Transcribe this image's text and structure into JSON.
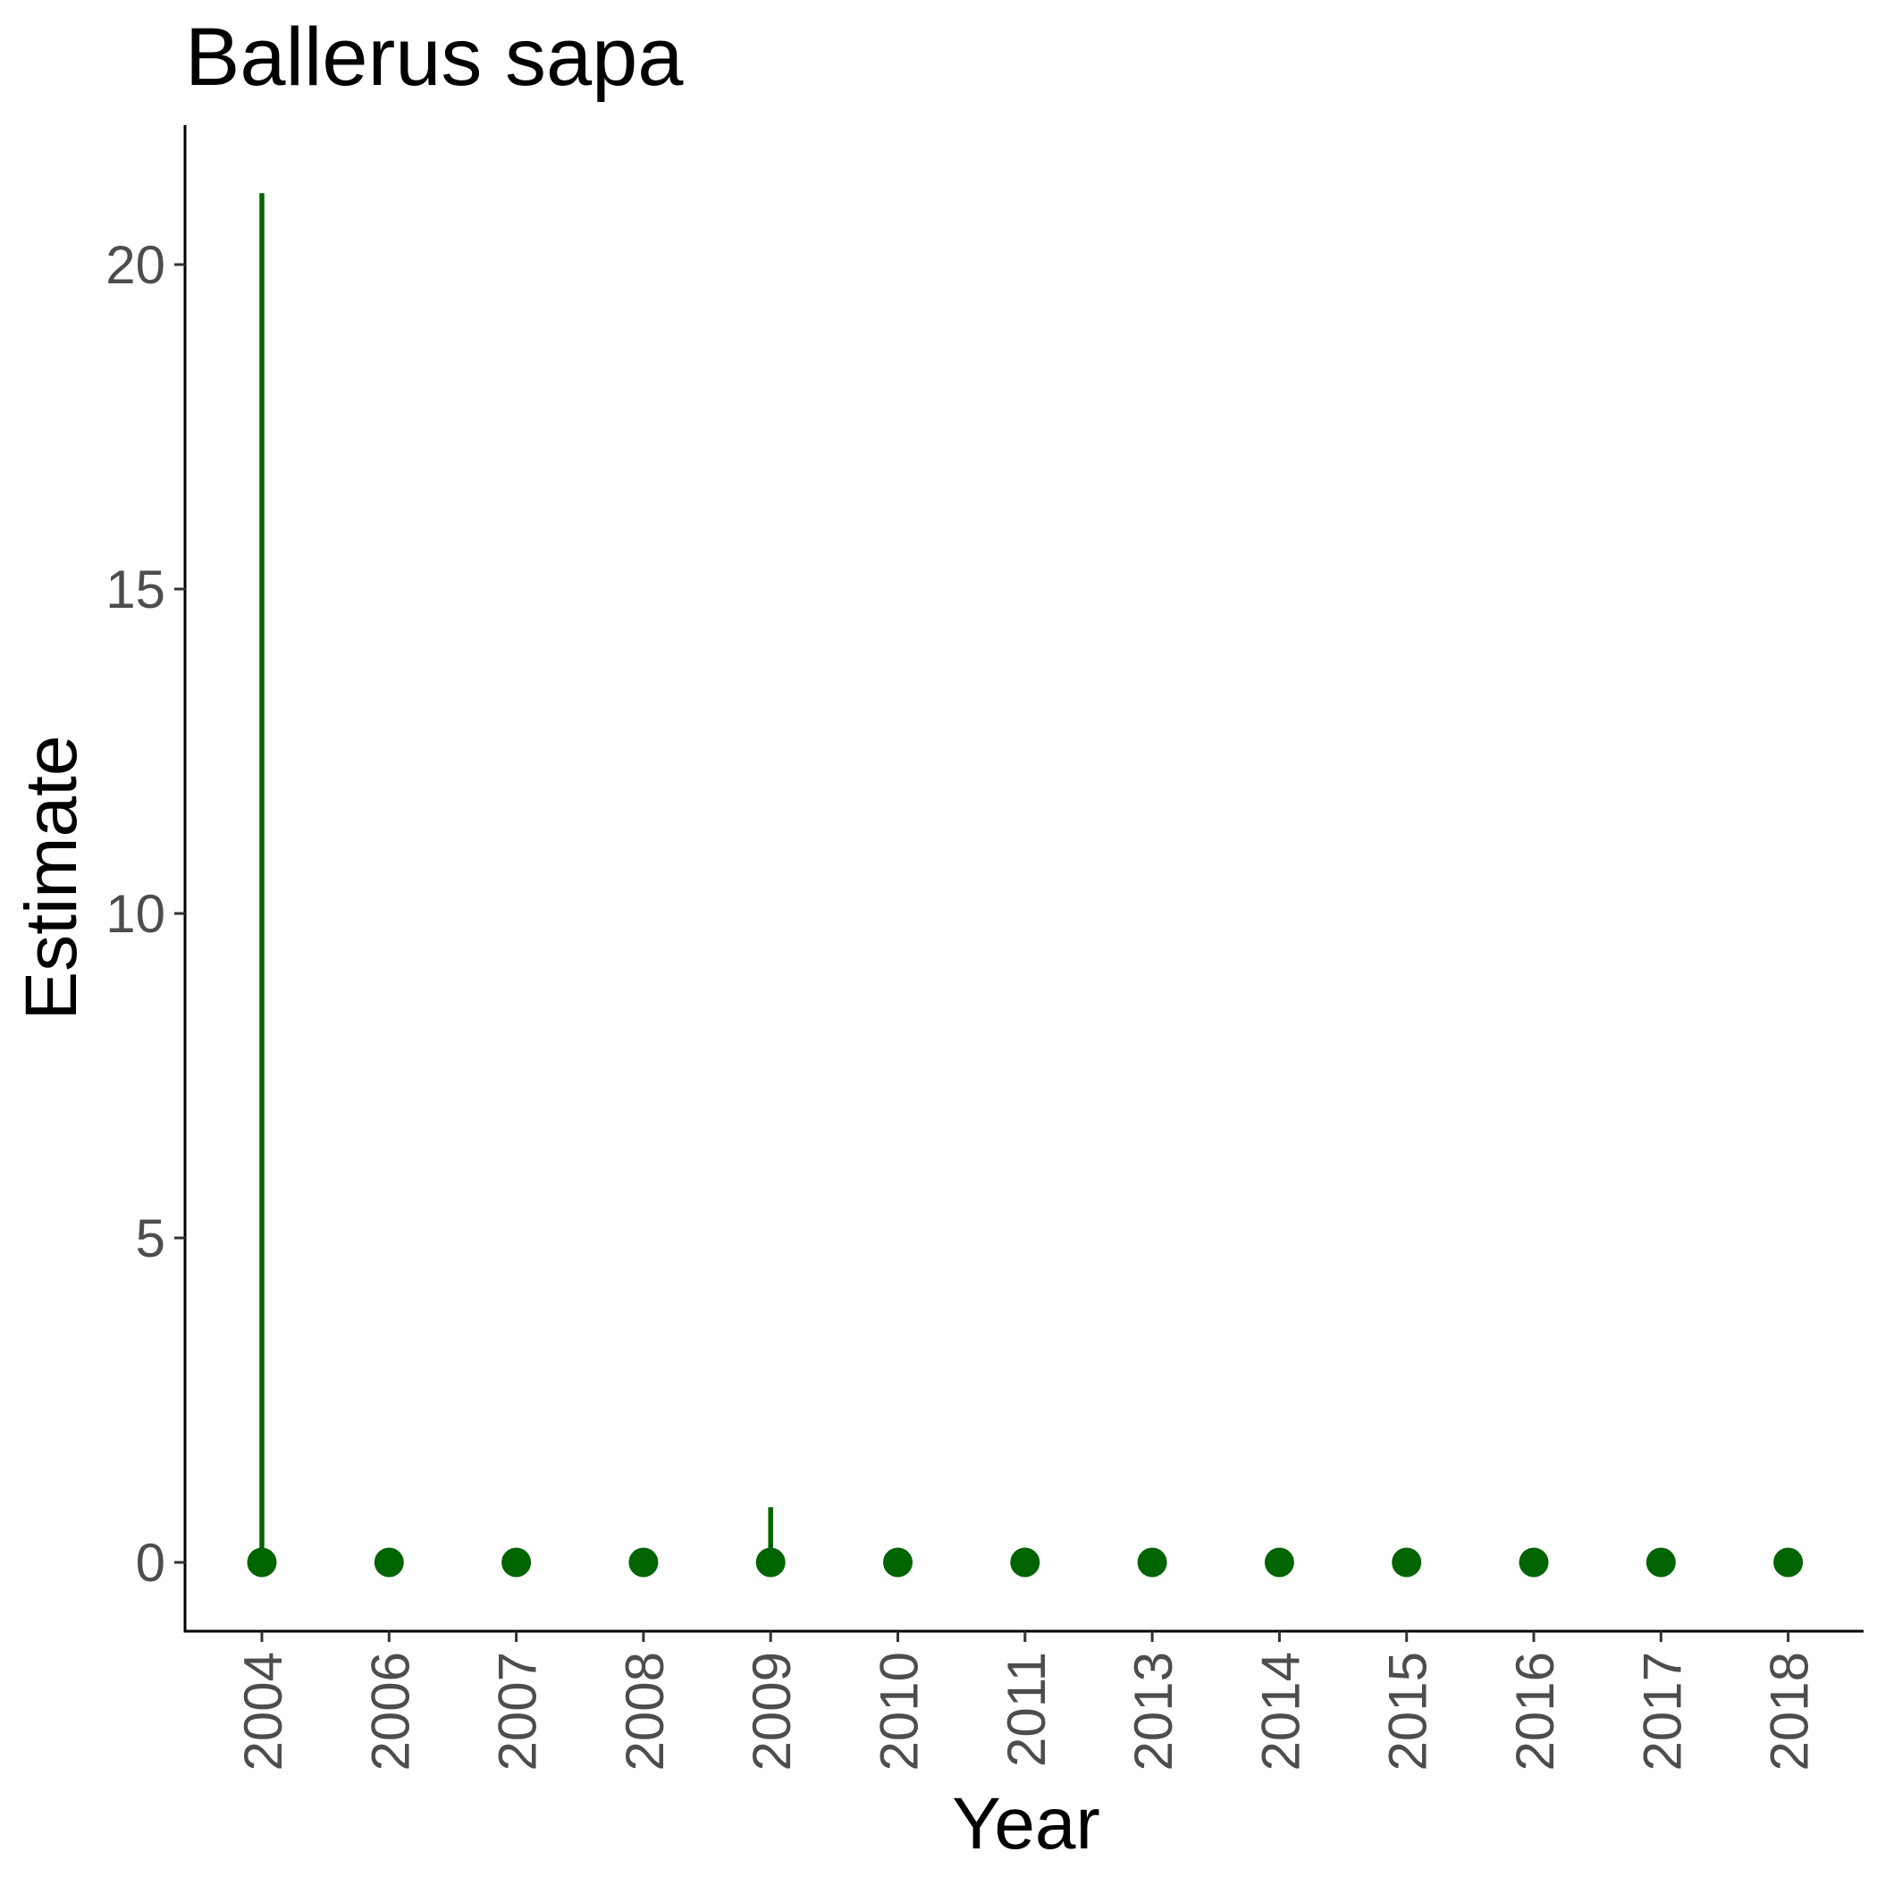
{
  "chart_data": {
    "type": "scatter",
    "title": "Ballerus sapa",
    "xlabel": "Year",
    "ylabel": "Estimate",
    "categories": [
      "2004",
      "2006",
      "2007",
      "2008",
      "2009",
      "2010",
      "2011",
      "2013",
      "2014",
      "2015",
      "2016",
      "2017",
      "2018"
    ],
    "values": [
      0,
      0,
      0,
      0,
      0,
      0,
      0,
      0,
      0,
      0,
      0,
      0,
      0
    ],
    "upper": [
      21.1,
      0,
      0,
      0,
      0.85,
      0,
      0,
      0,
      0,
      0,
      0,
      0,
      0
    ],
    "lower": [
      0,
      0,
      0,
      0,
      0,
      0,
      0,
      0,
      0,
      0,
      0,
      0,
      0
    ],
    "yticks": [
      0,
      5,
      10,
      15,
      20
    ],
    "ylim": [
      -1.07,
      22.2
    ],
    "grid": false,
    "legend": "none",
    "x_tick_rotation": "vertical",
    "color": "#006400"
  }
}
